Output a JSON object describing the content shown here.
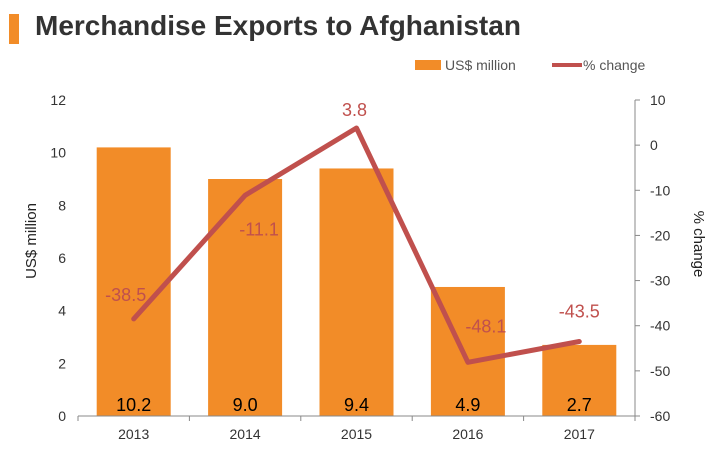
{
  "header": {
    "title": "Merchandise Exports to Afghanistan",
    "accent_color": "#f28c28"
  },
  "chart_data": {
    "type": "bar",
    "title": "Merchandise Exports to Afghanistan",
    "categories": [
      "2013",
      "2014",
      "2015",
      "2016",
      "2017"
    ],
    "series": [
      {
        "name": "US$ million",
        "type": "bar",
        "axis": "left",
        "color": "#f28c28",
        "values": [
          10.2,
          9.0,
          9.4,
          4.9,
          2.7
        ],
        "labels": [
          "10.2",
          "9.0",
          "9.4",
          "4.9",
          "2.7"
        ]
      },
      {
        "name": "% change",
        "type": "line",
        "axis": "right",
        "color": "#c0504d",
        "values": [
          -38.5,
          -11.1,
          3.8,
          -48.1,
          -43.5
        ],
        "labels": [
          "-38.5",
          "-11.1",
          "3.8",
          "-48.1",
          "-43.5"
        ]
      }
    ],
    "y_left": {
      "label": "US$ million",
      "min": 0,
      "max": 12,
      "ticks": [
        "0",
        "2",
        "4",
        "6",
        "8",
        "10",
        "12"
      ]
    },
    "y_right": {
      "label": "% change",
      "min": -60,
      "max": 10,
      "ticks": [
        "-60",
        "-50",
        "-40",
        "-30",
        "-20",
        "-10",
        "0",
        "10"
      ]
    },
    "legend_position": "top-right",
    "grid": false
  }
}
